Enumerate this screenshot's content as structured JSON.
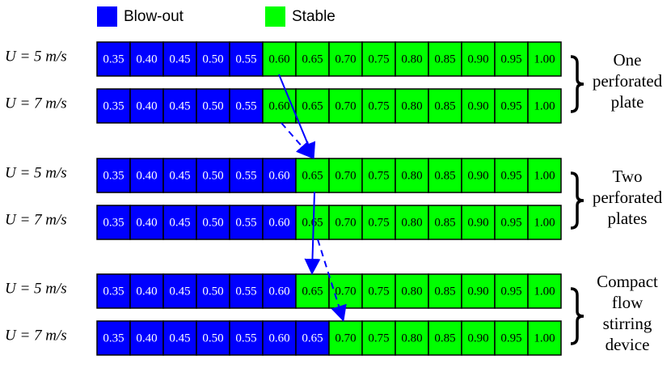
{
  "legend": [
    {
      "label": "Blow-out",
      "color": "#0000ff"
    },
    {
      "label": "Stable",
      "color": "#00ff00"
    }
  ],
  "groups": [
    {
      "label": [
        "One",
        "perforated",
        "plate"
      ],
      "rows": [
        {
          "label": "U = 5 m/s",
          "blowout": [
            "0.35",
            "0.40",
            "0.45",
            "0.50",
            "0.55"
          ],
          "stable": [
            "0.60",
            "0.65",
            "0.70",
            "0.75",
            "0.80",
            "0.85",
            "0.90",
            "0.95",
            "1.00"
          ]
        },
        {
          "label": "U = 7 m/s",
          "blowout": [
            "0.35",
            "0.40",
            "0.45",
            "0.50",
            "0.55"
          ],
          "stable": [
            "0.60",
            "0.65",
            "0.70",
            "0.75",
            "0.80",
            "0.85",
            "0.90",
            "0.95",
            "1.00"
          ]
        }
      ]
    },
    {
      "label": [
        "Two",
        "perforated",
        "plates"
      ],
      "rows": [
        {
          "label": "U = 5 m/s",
          "blowout": [
            "0.35",
            "0.40",
            "0.45",
            "0.50",
            "0.55",
            "0.60"
          ],
          "stable": [
            "0.65",
            "0.70",
            "0.75",
            "0.80",
            "0.85",
            "0.90",
            "0.95",
            "1.00"
          ]
        },
        {
          "label": "U = 7 m/s",
          "blowout": [
            "0.35",
            "0.40",
            "0.45",
            "0.50",
            "0.55",
            "0.60"
          ],
          "stable": [
            "0.65",
            "0.70",
            "0.75",
            "0.80",
            "0.85",
            "0.90",
            "0.95",
            "1.00"
          ]
        }
      ]
    },
    {
      "label": [
        "Compact",
        "flow",
        "stirring",
        "device"
      ],
      "rows": [
        {
          "label": "U = 5 m/s",
          "blowout": [
            "0.35",
            "0.40",
            "0.45",
            "0.50",
            "0.55",
            "0.60"
          ],
          "stable": [
            "0.65",
            "0.70",
            "0.75",
            "0.80",
            "0.85",
            "0.90",
            "0.95",
            "1.00"
          ]
        },
        {
          "label": "U = 7 m/s",
          "blowout": [
            "0.35",
            "0.40",
            "0.45",
            "0.50",
            "0.55",
            "0.60",
            "0.65"
          ],
          "stable": [
            "0.70",
            "0.75",
            "0.80",
            "0.85",
            "0.90",
            "0.95",
            "1.00"
          ]
        }
      ]
    }
  ]
}
